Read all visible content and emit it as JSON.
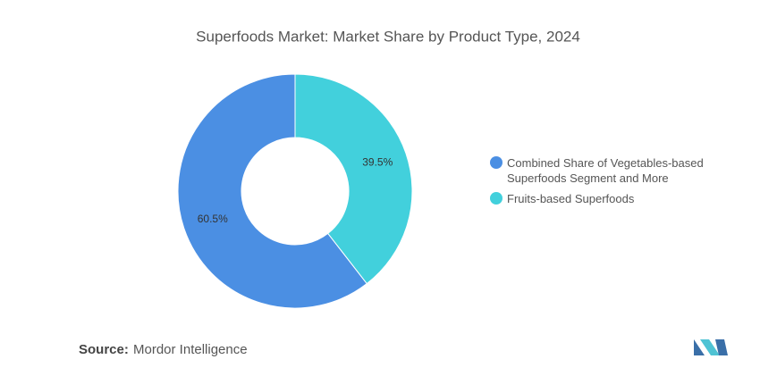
{
  "chart_data": {
    "type": "donut",
    "title": "Superfoods Market: Market Share by Product Type, 2024",
    "categories": [
      "Combined Share of Vegetables-based Superfoods Segment and More",
      "Fruits-based Superfoods"
    ],
    "values": [
      60.5,
      39.5
    ],
    "value_labels": [
      "60.5%",
      "39.5%"
    ],
    "colors": [
      "#4b8fe3",
      "#42d0dc"
    ],
    "source_label": "Source:",
    "source": "Mordor Intelligence"
  }
}
